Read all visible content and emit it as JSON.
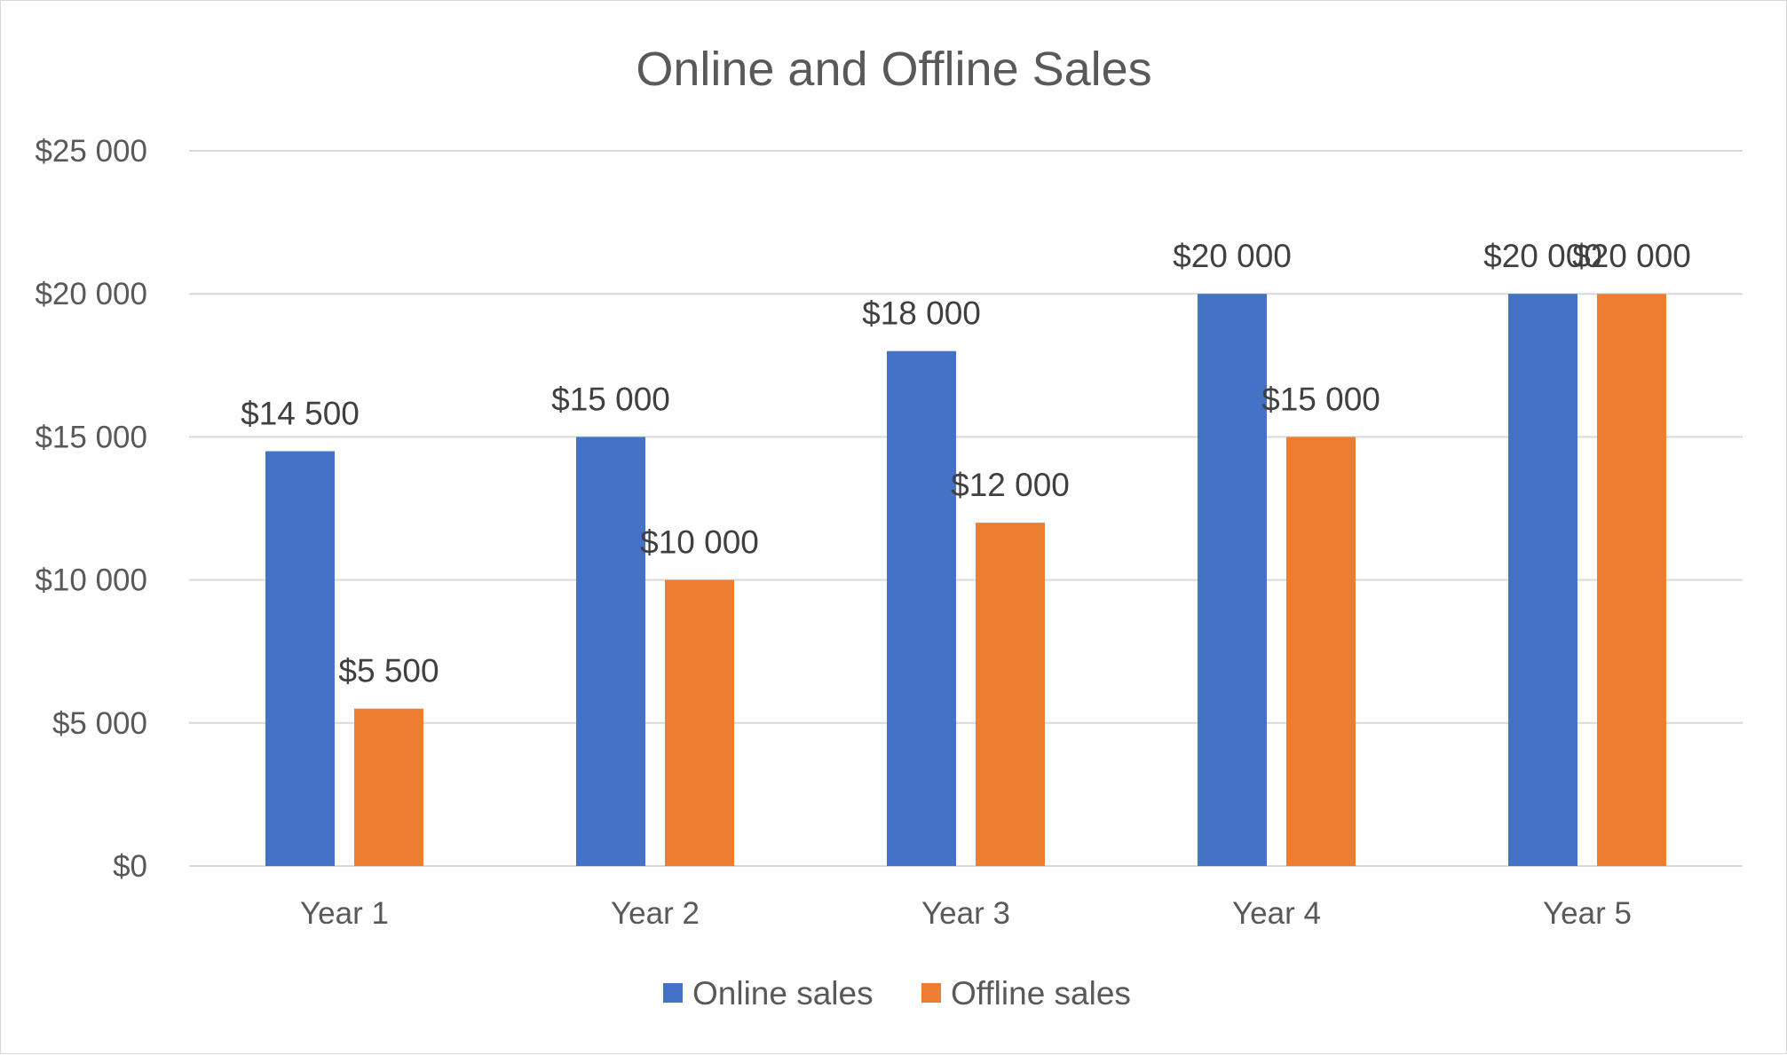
{
  "chart_data": {
    "type": "bar",
    "title": "Online and Offline Sales",
    "xlabel": "",
    "ylabel": "",
    "categories": [
      "Year 1",
      "Year 2",
      "Year 3",
      "Year 4",
      "Year 5"
    ],
    "series": [
      {
        "name": "Online sales",
        "color": "#4472c4",
        "values": [
          14500,
          15000,
          18000,
          20000,
          20000
        ],
        "labels": [
          "$14 500",
          "$15 000",
          "$18 000",
          "$20 000",
          "$20 000"
        ]
      },
      {
        "name": "Offline sales",
        "color": "#ed7d31",
        "values": [
          5500,
          10000,
          12000,
          15000,
          20000
        ],
        "labels": [
          "$5 500",
          "$10 000",
          "$12 000",
          "$15 000",
          "$20 000"
        ]
      }
    ],
    "ylim": [
      0,
      25000
    ],
    "yticks": [
      0,
      5000,
      10000,
      15000,
      20000,
      25000
    ],
    "ytick_labels": [
      "$0",
      "$5 000",
      "$10 000",
      "$15 000",
      "$20 000",
      "$25 000"
    ],
    "grid": true,
    "legend_position": "bottom"
  }
}
